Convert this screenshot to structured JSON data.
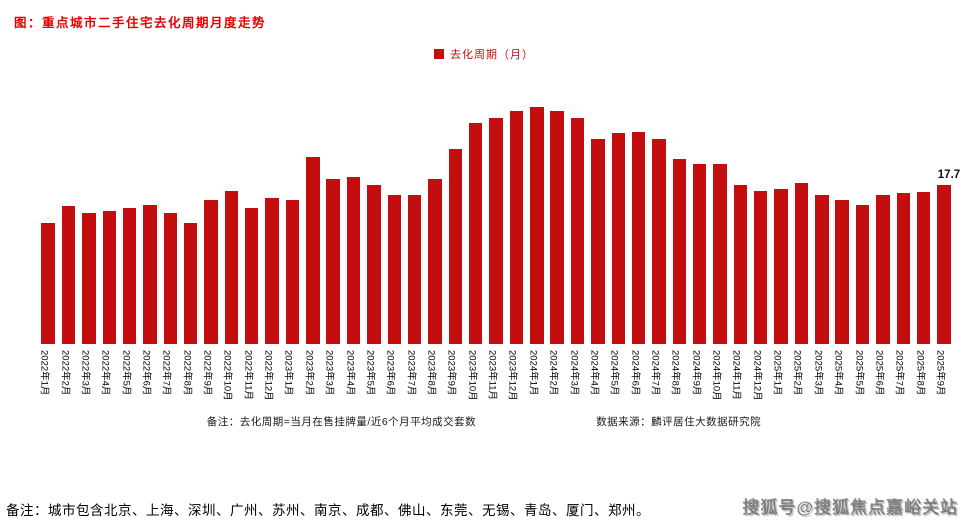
{
  "page": {
    "title": "图：重点城市二手住宅去化周期月度走势",
    "footnote_left": "备注：去化周期=当月在售挂牌量/近6个月平均成交套数",
    "footnote_right": "数据来源：麟评居住大数据研究院",
    "bottom_note": "备注：城市包含北京、上海、深圳、广州、苏州、南京、成都、佛山、东莞、无锡、青岛、厦门、郑州。",
    "watermark": "搜狐号@搜狐焦点嘉峪关站"
  },
  "colors": {
    "bar_red": "#c30d0e",
    "title_red": "#e60000",
    "watermark_gray": "#707070"
  },
  "chart_data": {
    "type": "bar",
    "title": "图：重点城市二手住宅去化周期月度走势",
    "legend": [
      "去化周期（月）"
    ],
    "legend_position": "top-center",
    "grid": false,
    "bar_color": "#c30d0e",
    "ylabel": "去化周期（月）",
    "xlabel": "",
    "ylim": [
      0,
      28
    ],
    "last_value_label": "17.7",
    "categories": [
      "2022年1月",
      "2022年2月",
      "2022年3月",
      "2022年4月",
      "2022年5月",
      "2022年6月",
      "2022年7月",
      "2022年8月",
      "2022年9月",
      "2022年10月",
      "2022年11月",
      "2022年12月",
      "2023年1月",
      "2023年2月",
      "2023年3月",
      "2023年4月",
      "2023年5月",
      "2023年6月",
      "2023年7月",
      "2023年8月",
      "2023年9月",
      "2023年10月",
      "2023年11月",
      "2023年12月",
      "2024年1月",
      "2024年2月",
      "2024年3月",
      "2024年4月",
      "2024年5月",
      "2024年6月",
      "2024年7月",
      "2024年8月",
      "2024年9月",
      "2024年10月",
      "2024年11月",
      "2024年12月",
      "2025年1月",
      "2025年2月",
      "2025年3月",
      "2025年4月",
      "2025年5月",
      "2025年6月",
      "2025年7月",
      "2025年8月",
      "2025年9月"
    ],
    "values": [
      13.4,
      15.3,
      14.6,
      14.8,
      15.1,
      15.4,
      14.5,
      13.4,
      16.0,
      17.0,
      15.1,
      16.2,
      16.0,
      20.8,
      18.3,
      18.5,
      17.7,
      16.6,
      16.6,
      18.3,
      21.7,
      24.5,
      25.1,
      25.9,
      26.3,
      25.9,
      25.1,
      22.8,
      23.4,
      23.6,
      22.8,
      20.5,
      20.0,
      20.0,
      17.7,
      17.0,
      17.2,
      17.9,
      16.6,
      16.0,
      15.4,
      16.6,
      16.8,
      16.9,
      17.7
    ]
  }
}
